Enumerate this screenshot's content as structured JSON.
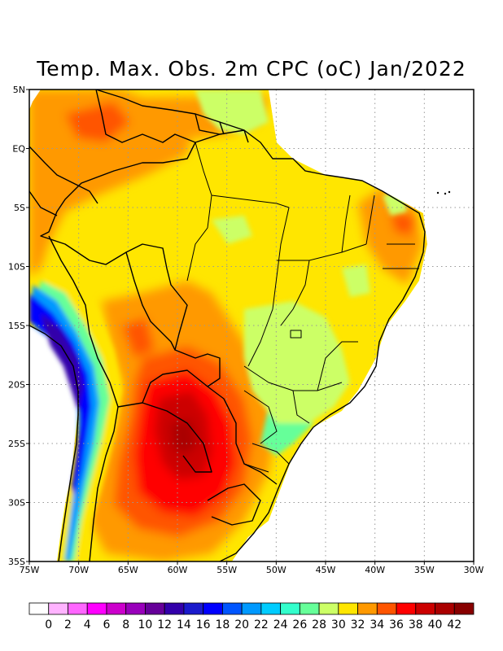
{
  "title": "Temp. Max. Obs. 2m CPC (oC) Jan/2022",
  "map": {
    "lon_range": [
      -75,
      -30
    ],
    "lat_range": [
      -35,
      5
    ],
    "lon_ticks": [
      {
        "value": -75,
        "label": "75W"
      },
      {
        "value": -70,
        "label": "70W"
      },
      {
        "value": -65,
        "label": "65W"
      },
      {
        "value": -60,
        "label": "60W"
      },
      {
        "value": -55,
        "label": "55W"
      },
      {
        "value": -50,
        "label": "50W"
      },
      {
        "value": -45,
        "label": "45W"
      },
      {
        "value": -40,
        "label": "40W"
      },
      {
        "value": -35,
        "label": "35W"
      },
      {
        "value": -30,
        "label": "30W"
      }
    ],
    "lat_ticks": [
      {
        "value": 5,
        "label": "5N"
      },
      {
        "value": 0,
        "label": "EQ"
      },
      {
        "value": -5,
        "label": "5S"
      },
      {
        "value": -10,
        "label": "10S"
      },
      {
        "value": -15,
        "label": "15S"
      },
      {
        "value": -20,
        "label": "20S"
      },
      {
        "value": -25,
        "label": "25S"
      },
      {
        "value": -30,
        "label": "30S"
      },
      {
        "value": -35,
        "label": "35S"
      }
    ],
    "grid": true,
    "background_value_color": "#ffe600"
  },
  "colorbar": {
    "colors": [
      "#ffffff",
      "#ffb3ff",
      "#ff66ff",
      "#ff00ff",
      "#cc00cc",
      "#9900bb",
      "#660099",
      "#3300aa",
      "#1a1acc",
      "#0000ff",
      "#0055ff",
      "#0099ff",
      "#00ccff",
      "#33ffcc",
      "#66ff99",
      "#ccff66",
      "#ffe600",
      "#ff9900",
      "#ff5500",
      "#ff0000",
      "#cc0000",
      "#aa0000",
      "#880000"
    ],
    "labels": [
      "0",
      "2",
      "4",
      "6",
      "8",
      "10",
      "12",
      "14",
      "16",
      "18",
      "20",
      "22",
      "24",
      "26",
      "28",
      "30",
      "32",
      "34",
      "36",
      "38",
      "40",
      "42"
    ]
  }
}
